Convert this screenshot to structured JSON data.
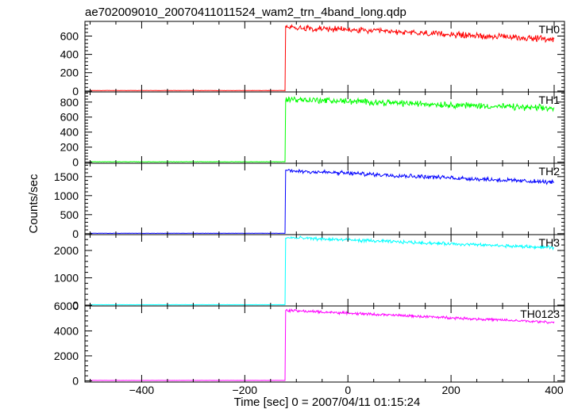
{
  "chart_data": {
    "type": "line",
    "title": "ae702009010_20070411011524_wam2_trn_4band_long.qdp",
    "xlabel": "Time [sec] 0 = 2007/04/11 01:15:24",
    "ylabel": "Counts/sec",
    "xlim": [
      -510,
      420
    ],
    "x_ticks": [
      -400,
      -200,
      0,
      200,
      400
    ],
    "x_tick_labels": [
      "−400",
      "−200",
      "0",
      "200",
      "400"
    ],
    "step_time": -122,
    "data_start": -500,
    "data_end": 400,
    "grid": false,
    "panels": [
      {
        "name": "TH0",
        "color": "#ff0000",
        "ylim": [
          -10,
          760
        ],
        "yticks": [
          0,
          200,
          400,
          600
        ],
        "ytick_labels": [
          "0",
          "200",
          "400",
          "600"
        ],
        "pre_level": 5,
        "post_start": 700,
        "post_end": 565,
        "noise": 25
      },
      {
        "name": "TH1",
        "color": "#00ff00",
        "ylim": [
          -15,
          935
        ],
        "yticks": [
          0,
          200,
          400,
          600,
          800
        ],
        "ytick_labels": [
          "0",
          "200",
          "400",
          "600",
          "800"
        ],
        "pre_level": 5,
        "post_start": 840,
        "post_end": 715,
        "noise": 32
      },
      {
        "name": "TH2",
        "color": "#0000ff",
        "ylim": [
          -25,
          1850
        ],
        "yticks": [
          0,
          500,
          1000,
          1500
        ],
        "ytick_labels": [
          "0",
          "500",
          "1000",
          "1500"
        ],
        "pre_level": 10,
        "post_start": 1660,
        "post_end": 1350,
        "noise": 42
      },
      {
        "name": "TH3",
        "color": "#00ffff",
        "ylim": [
          -30,
          2580
        ],
        "yticks": [
          0,
          1000,
          2000
        ],
        "ytick_labels": [
          "0",
          "1000",
          "2000"
        ],
        "pre_level": 15,
        "post_start": 2470,
        "post_end": 2100,
        "noise": 45
      },
      {
        "name": "TH0123",
        "color": "#ff00ff",
        "ylim": [
          -100,
          6000
        ],
        "yticks": [
          0,
          2000,
          4000,
          6000
        ],
        "ytick_labels": [
          "0",
          "2000",
          "4000",
          "6000"
        ],
        "pre_level": 30,
        "post_start": 5650,
        "post_end": 4680,
        "noise": 80
      }
    ]
  }
}
